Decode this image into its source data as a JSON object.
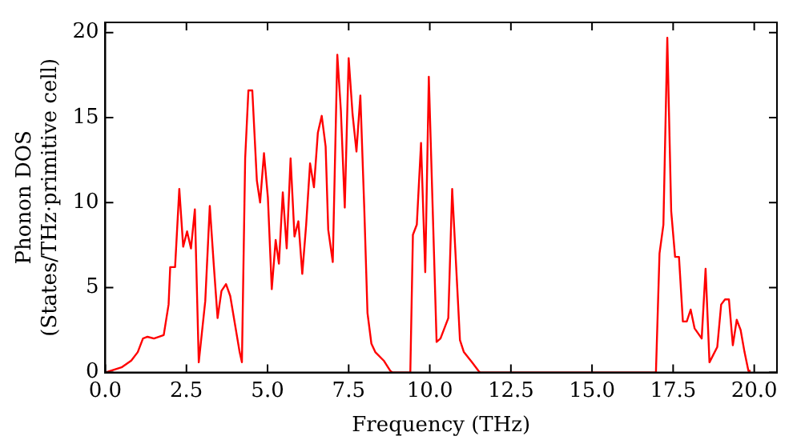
{
  "chart_data": {
    "type": "line",
    "xlabel": "Frequency (THz)",
    "ylabel": "Phonon DOS\n(States/THz·primitive cell)",
    "grid": false,
    "legend": false,
    "marker": "none",
    "line_style": "solid",
    "xlim": [
      0,
      20.7
    ],
    "ylim": [
      0,
      20.6
    ],
    "xticks": [
      {
        "value": 0,
        "label": "0.0"
      },
      2.5,
      {
        "value": 5,
        "label": "5.0"
      },
      7.5,
      {
        "value": 10,
        "label": "10.0"
      },
      12.5,
      {
        "value": 15,
        "label": "15.0"
      },
      17.5,
      {
        "value": 20,
        "label": "20.0"
      }
    ],
    "yticks": [
      0,
      5,
      10,
      15,
      20
    ],
    "series": [
      {
        "color": "#ff0000",
        "x": [
          0,
          0.5,
          0.8,
          1.0,
          1.16,
          1.3,
          1.5,
          1.8,
          1.95,
          2.0,
          2.15,
          2.28,
          2.4,
          2.52,
          2.64,
          2.76,
          2.88,
          3.08,
          3.22,
          3.34,
          3.46,
          3.58,
          3.72,
          3.85,
          4.14,
          4.21,
          4.31,
          4.41,
          4.53,
          4.67,
          4.77,
          4.89,
          5.01,
          5.13,
          5.25,
          5.35,
          5.47,
          5.59,
          5.71,
          5.83,
          5.95,
          6.07,
          6.19,
          6.31,
          6.43,
          6.55,
          6.67,
          6.79,
          6.87,
          7.01,
          7.15,
          7.26,
          7.38,
          7.5,
          7.62,
          7.74,
          7.86,
          7.98,
          8.08,
          8.2,
          8.32,
          8.58,
          8.78,
          8.85,
          9.4,
          9.48,
          9.6,
          9.73,
          9.86,
          9.97,
          10.21,
          10.33,
          10.57,
          10.69,
          10.93,
          11.05,
          11.3,
          11.5,
          11.55,
          16.97,
          17.08,
          17.2,
          17.32,
          17.44,
          17.56,
          17.68,
          17.8,
          17.92,
          18.04,
          18.16,
          18.38,
          18.5,
          18.62,
          18.86,
          18.98,
          19.1,
          19.22,
          19.34,
          19.46,
          19.58,
          19.7,
          19.82,
          19.86
        ],
        "values": [
          0,
          0.3,
          0.7,
          1.2,
          2.0,
          2.1,
          2.0,
          2.2,
          4.0,
          6.2,
          6.2,
          10.8,
          7.4,
          8.3,
          7.3,
          9.6,
          0.6,
          4.2,
          9.8,
          6.4,
          3.2,
          4.8,
          5.2,
          4.5,
          1.2,
          0.6,
          12.6,
          16.6,
          16.6,
          11.3,
          10.0,
          12.9,
          10.3,
          4.9,
          7.8,
          6.4,
          10.6,
          7.3,
          12.6,
          8.0,
          8.9,
          5.8,
          8.7,
          12.3,
          10.9,
          14.1,
          15.1,
          13.3,
          8.4,
          6.5,
          18.7,
          15.4,
          9.7,
          18.5,
          15.2,
          13.0,
          16.3,
          9.7,
          3.5,
          1.7,
          1.2,
          0.7,
          0.1,
          0,
          0,
          8.1,
          8.7,
          13.5,
          5.9,
          17.4,
          1.8,
          2.0,
          3.2,
          10.8,
          1.9,
          1.2,
          0.6,
          0.1,
          0,
          0,
          7.0,
          8.7,
          19.7,
          9.5,
          6.8,
          6.8,
          3.0,
          3.0,
          3.7,
          2.6,
          2.0,
          6.1,
          0.6,
          1.5,
          4.0,
          4.3,
          4.3,
          1.6,
          3.1,
          2.5,
          1.2,
          0.1,
          0
        ]
      }
    ]
  }
}
